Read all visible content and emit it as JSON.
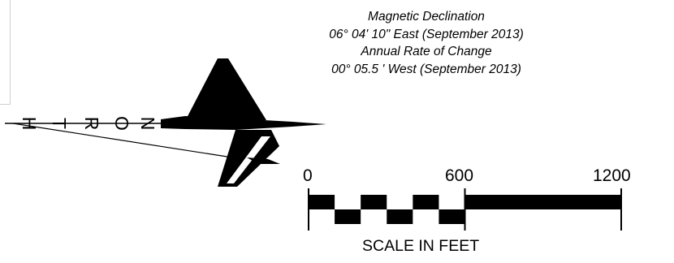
{
  "declination": {
    "title": "Magnetic Declination",
    "value": "06° 04' 10\" East (September 2013)",
    "change_title": "Annual Rate of Change",
    "change_value": "00° 05.5 ' West (September 2013)"
  },
  "north_arrow": {
    "letters": [
      "H",
      "T",
      "R",
      "O",
      "N"
    ]
  },
  "scale": {
    "labels": [
      "0",
      "600",
      "1200"
    ],
    "title": "SCALE IN FEET",
    "max_value": 1200,
    "segment_value": 100,
    "coarse_from": 600
  }
}
